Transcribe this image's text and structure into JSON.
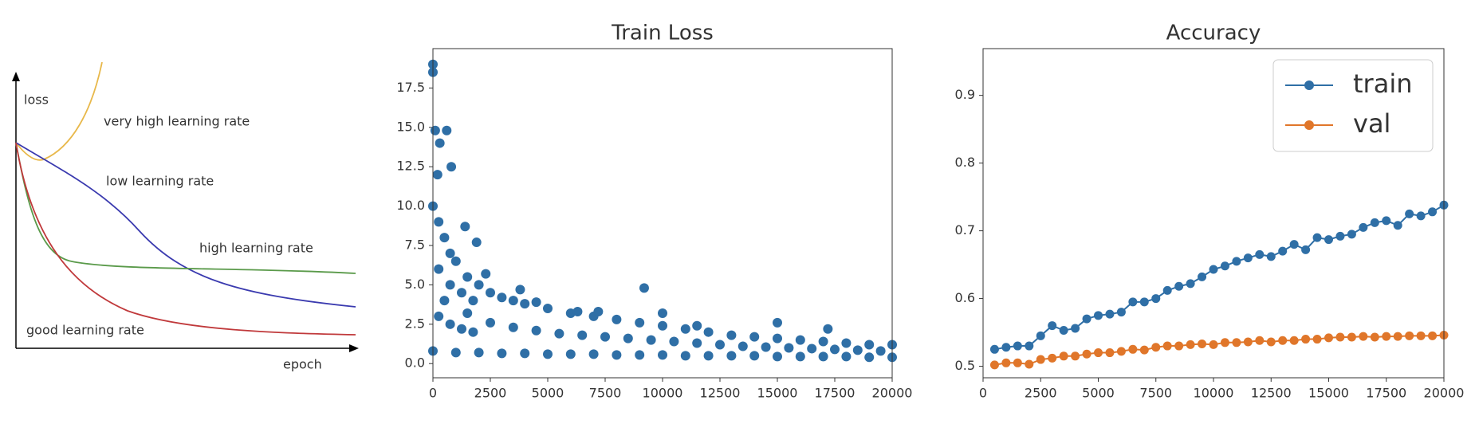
{
  "chart_data": [
    {
      "type": "schematic",
      "ylabel": "loss",
      "xlabel": "epoch",
      "series": [
        {
          "name": "very high learning rate",
          "color": "#e8b84a"
        },
        {
          "name": "low learning rate",
          "color": "#3a3aaf"
        },
        {
          "name": "high learning rate",
          "color": "#5a9a4a"
        },
        {
          "name": "good learning rate",
          "color": "#c0393b"
        }
      ]
    },
    {
      "type": "scatter",
      "title": "Train Loss",
      "color": "#2f6fa6",
      "x": [
        0,
        250,
        500,
        750,
        1000,
        1500,
        2000,
        2500,
        3000,
        3500,
        4000,
        5000,
        6000,
        7000,
        8000,
        9000,
        10000,
        11000,
        12000,
        13000,
        14000,
        15000,
        16000,
        17000,
        18000,
        19000,
        20000,
        500,
        1500,
        2500,
        3500,
        4500,
        5500,
        6500,
        7500,
        8500,
        9500,
        10500,
        11500,
        12500,
        13500,
        14500,
        15500,
        16500,
        17500,
        18500,
        19500,
        0,
        1000,
        2000,
        3000,
        4000,
        5000,
        6000,
        7000,
        8000,
        9000,
        10000,
        11000,
        12000,
        13000,
        14000,
        15000,
        16000,
        17000,
        18000,
        19000,
        20000,
        0,
        0,
        100,
        300,
        600,
        800,
        200,
        1400,
        1900,
        2300,
        9200,
        10000,
        15000,
        17200,
        11500,
        6300,
        7200,
        3800,
        4500,
        250,
        750,
        1250,
        1750,
        250,
        750,
        1250,
        1750
      ],
      "values": [
        10,
        9,
        8,
        7,
        6.5,
        5.5,
        5,
        4.5,
        4.2,
        4,
        3.8,
        3.5,
        3.2,
        3,
        2.8,
        2.6,
        2.4,
        2.2,
        2,
        1.8,
        1.7,
        1.6,
        1.5,
        1.4,
        1.3,
        1.2,
        1.2,
        4,
        3.2,
        2.6,
        2.3,
        2.1,
        1.9,
        1.8,
        1.7,
        1.6,
        1.5,
        1.4,
        1.3,
        1.2,
        1.1,
        1.05,
        1,
        0.95,
        0.9,
        0.85,
        0.8,
        0.8,
        0.7,
        0.7,
        0.65,
        0.65,
        0.6,
        0.6,
        0.6,
        0.55,
        0.55,
        0.55,
        0.5,
        0.5,
        0.5,
        0.5,
        0.45,
        0.45,
        0.45,
        0.45,
        0.4,
        0.4,
        19,
        18.5,
        14.8,
        14,
        14.8,
        12.5,
        12,
        8.7,
        7.7,
        5.7,
        4.8,
        3.2,
        2.6,
        2.2,
        2.4,
        3.3,
        3.3,
        4.7,
        3.9,
        6,
        5,
        4.5,
        4,
        3,
        2.5,
        2.2,
        2
      ],
      "xlim": [
        0,
        20000
      ],
      "xticks": [
        0,
        2500,
        5000,
        7500,
        10000,
        12500,
        15000,
        17500,
        20000
      ],
      "ylim": [
        -0.9,
        20.0
      ],
      "yticks": [
        {
          "value": 0,
          "label": "0.0"
        },
        2.5,
        {
          "value": 5,
          "label": "5.0"
        },
        7.5,
        {
          "value": 10,
          "label": "10.0"
        },
        12.5,
        {
          "value": 15,
          "label": "15.0"
        },
        17.5
      ]
    },
    {
      "type": "line",
      "title": "Accuracy",
      "legend": "upper right",
      "x": [
        500,
        1000,
        1500,
        2000,
        2500,
        3000,
        3500,
        4000,
        4500,
        5000,
        5500,
        6000,
        6500,
        7000,
        7500,
        8000,
        8500,
        9000,
        9500,
        10000,
        10500,
        11000,
        11500,
        12000,
        12500,
        13000,
        13500,
        14000,
        14500,
        15000,
        15500,
        16000,
        16500,
        17000,
        17500,
        18000,
        18500,
        19000,
        19500,
        20000
      ],
      "series": [
        {
          "name": "train",
          "color": "#2f6fa6",
          "values": [
            0.525,
            0.528,
            0.53,
            0.53,
            0.545,
            0.56,
            0.553,
            0.556,
            0.57,
            0.575,
            0.577,
            0.58,
            0.595,
            0.595,
            0.6,
            0.612,
            0.618,
            0.622,
            0.632,
            0.643,
            0.648,
            0.655,
            0.66,
            0.665,
            0.662,
            0.67,
            0.68,
            0.672,
            0.69,
            0.687,
            0.692,
            0.695,
            0.705,
            0.712,
            0.715,
            0.708,
            0.725,
            0.722,
            0.728,
            0.738
          ]
        },
        {
          "name": "val",
          "color": "#e0762a",
          "values": [
            0.502,
            0.505,
            0.505,
            0.503,
            0.51,
            0.512,
            0.515,
            0.515,
            0.518,
            0.52,
            0.52,
            0.522,
            0.525,
            0.524,
            0.528,
            0.53,
            0.53,
            0.532,
            0.533,
            0.532,
            0.535,
            0.535,
            0.536,
            0.538,
            0.536,
            0.538,
            0.538,
            0.54,
            0.54,
            0.542,
            0.543,
            0.543,
            0.544,
            0.543,
            0.544,
            0.544,
            0.545,
            0.545,
            0.545,
            0.546
          ]
        }
      ],
      "xlim": [
        0,
        20000
      ],
      "xticks": [
        0,
        2500,
        5000,
        7500,
        10000,
        12500,
        15000,
        17500,
        20000
      ],
      "ylim": [
        0.483,
        0.969
      ],
      "yticks": [
        0.5,
        0.6,
        0.7,
        0.8,
        0.9
      ]
    }
  ]
}
